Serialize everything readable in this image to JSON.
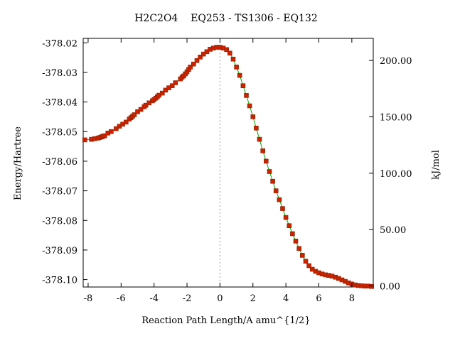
{
  "chart_data": {
    "type": "line",
    "title": "H2C2O4    EQ253 - TS1306 - EQ132",
    "xlabel": "Reaction Path Length/A amu^{1/2}",
    "ylabel": "Energy/Hartree",
    "y2label": "kJ/mol",
    "xlim": [
      -8.3,
      9.3
    ],
    "ylim": [
      -378.1025,
      -378.0185
    ],
    "y2lim": [
      -0.9,
      219.6
    ],
    "x_ticks": [
      "-8",
      "-6",
      "-4",
      "-2",
      "0",
      "2",
      "4",
      "6",
      "8"
    ],
    "y_ticks": [
      "-378.02",
      "-378.03",
      "-378.04",
      "-378.05",
      "-378.06",
      "-378.07",
      "-378.08",
      "-378.09",
      "-378.10"
    ],
    "y2_ticks": [
      "200.00",
      "150.00",
      "100.00",
      "50.00",
      "0.00"
    ],
    "grid": false,
    "reference_line_x": 0,
    "colors": {
      "line": "#00aa00",
      "marker": "#cc2200",
      "marker_edge": "#882200",
      "ref_line": "#999999"
    },
    "series": [
      {
        "x": [
          -8.2,
          -7.8,
          -7.6,
          -7.4,
          -7.3,
          -7.2,
          -7.1,
          -7.0,
          -6.8,
          -6.6,
          -6.3,
          -6.1,
          -5.9,
          -5.7,
          -5.5,
          -5.4,
          -5.3,
          -5.2,
          -5.0,
          -4.8,
          -4.6,
          -4.5,
          -4.3,
          -4.1,
          -4.0,
          -3.9,
          -3.8,
          -3.7,
          -3.5,
          -3.3,
          -3.1,
          -2.9,
          -2.7,
          -2.4,
          -2.3,
          -2.2,
          -2.1,
          -2.0,
          -1.9,
          -1.8,
          -1.6,
          -1.4,
          -1.2,
          -1.0,
          -0.8,
          -0.6,
          -0.4,
          -0.2,
          0.0,
          0.2,
          0.4,
          0.6,
          0.8,
          1.0,
          1.2,
          1.4,
          1.6,
          1.8,
          2.0,
          2.2,
          2.4,
          2.6,
          2.8,
          3.0,
          3.2,
          3.4,
          3.6,
          3.8,
          4.0,
          4.2,
          4.4,
          4.6,
          4.8,
          5.0,
          5.2,
          5.4,
          5.6,
          5.8,
          6.0,
          6.2,
          6.4,
          6.6,
          6.8,
          7.0,
          7.2,
          7.4,
          7.6,
          7.8,
          8.0,
          8.2,
          8.4,
          8.6,
          8.8,
          9.0,
          9.2
        ],
        "y": [
          -378.0528,
          -378.0526,
          -378.0524,
          -378.0522,
          -378.052,
          -378.0518,
          -378.0516,
          -378.0514,
          -378.0505,
          -378.05,
          -378.049,
          -378.0482,
          -378.0475,
          -378.0468,
          -378.0458,
          -378.0453,
          -378.0448,
          -378.0443,
          -378.0433,
          -378.0425,
          -378.0416,
          -378.0411,
          -378.0403,
          -378.0396,
          -378.0392,
          -378.0387,
          -378.0382,
          -378.0377,
          -378.037,
          -378.036,
          -378.0352,
          -378.0345,
          -378.0335,
          -378.0322,
          -378.0316,
          -378.0312,
          -378.0305,
          -378.0298,
          -378.029,
          -378.0282,
          -378.0272,
          -378.026,
          -378.0248,
          -378.0238,
          -378.023,
          -378.0222,
          -378.0218,
          -378.0215,
          -378.0215,
          -378.0218,
          -378.0223,
          -378.0235,
          -378.0255,
          -378.0282,
          -378.031,
          -378.0345,
          -378.0378,
          -378.0413,
          -378.045,
          -378.0488,
          -378.0526,
          -378.0565,
          -378.06,
          -378.0635,
          -378.0668,
          -378.07,
          -378.073,
          -378.076,
          -378.079,
          -378.0818,
          -378.0845,
          -378.087,
          -378.0895,
          -378.0918,
          -378.0938,
          -378.0953,
          -378.0965,
          -378.0972,
          -378.0977,
          -378.0981,
          -378.0984,
          -378.0986,
          -378.0988,
          -378.0992,
          -378.0996,
          -378.1001,
          -378.1006,
          -378.1011,
          -378.1015,
          -378.1018,
          -378.102,
          -378.1021,
          -378.1022,
          -378.1022,
          -378.1023
        ]
      }
    ]
  }
}
